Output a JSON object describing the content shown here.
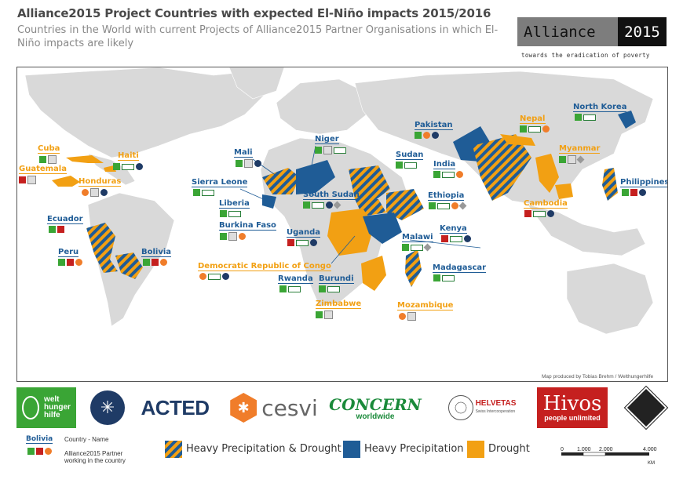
{
  "header": {
    "title": "Alliance2015 Project Countries with expected El-Niño impacts 2015/2016",
    "subtitle": "Countries in the World with current Projects of Alliance2015 Partner Organisations in which El-Niño impacts are likely"
  },
  "brand": {
    "logo_left": "Alliance",
    "logo_right": "2015",
    "tagline": "towards the eradication of poverty"
  },
  "map": {
    "credit": "Map produced by Tobias Brehm / Welthungerhilfe",
    "colors": {
      "heavy_precip": "#1f5c96",
      "drought": "#f2a013",
      "land": "#d9d9d9"
    },
    "countries": [
      {
        "name": "Cuba",
        "impact": "drought"
      },
      {
        "name": "Haiti",
        "impact": "drought"
      },
      {
        "name": "Guatemala",
        "impact": "drought"
      },
      {
        "name": "Honduras",
        "impact": "drought"
      },
      {
        "name": "Ecuador",
        "impact": "heavy-precipitation-and-drought"
      },
      {
        "name": "Peru",
        "impact": "heavy-precipitation-and-drought"
      },
      {
        "name": "Bolivia",
        "impact": "heavy-precipitation-and-drought"
      },
      {
        "name": "Mali",
        "impact": "heavy-precipitation-and-drought"
      },
      {
        "name": "Niger",
        "impact": "heavy-precipitation"
      },
      {
        "name": "Sierra Leone",
        "impact": "heavy-precipitation"
      },
      {
        "name": "Liberia",
        "impact": "heavy-precipitation"
      },
      {
        "name": "Burkina Faso",
        "impact": "heavy-precipitation"
      },
      {
        "name": "Sudan",
        "impact": "heavy-precipitation-and-drought"
      },
      {
        "name": "South Sudan",
        "impact": "heavy-precipitation-and-drought"
      },
      {
        "name": "Ethiopia",
        "impact": "heavy-precipitation-and-drought"
      },
      {
        "name": "Uganda",
        "impact": "heavy-precipitation"
      },
      {
        "name": "Kenya",
        "impact": "heavy-precipitation"
      },
      {
        "name": "Rwanda",
        "impact": "heavy-precipitation"
      },
      {
        "name": "Burundi",
        "impact": "heavy-precipitation"
      },
      {
        "name": "Democratic Republic of Congo",
        "impact": "drought"
      },
      {
        "name": "Malawi",
        "impact": "drought"
      },
      {
        "name": "Zimbabwe",
        "impact": "drought"
      },
      {
        "name": "Mozambique",
        "impact": "drought"
      },
      {
        "name": "Madagascar",
        "impact": "heavy-precipitation-and-drought"
      },
      {
        "name": "Pakistan",
        "impact": "heavy-precipitation"
      },
      {
        "name": "India",
        "impact": "heavy-precipitation-and-drought"
      },
      {
        "name": "Nepal",
        "impact": "drought"
      },
      {
        "name": "Myanmar",
        "impact": "drought"
      },
      {
        "name": "Cambodia",
        "impact": "drought"
      },
      {
        "name": "Philippines",
        "impact": "heavy-precipitation-and-drought"
      },
      {
        "name": "North Korea",
        "impact": "heavy-precipitation"
      }
    ]
  },
  "legend": {
    "sample_country": "Bolivia",
    "country_name": "Country - Name",
    "partner_line1": "Alliance2015 Partner",
    "partner_line2": "working in the country",
    "heavy_precip_drought": "Heavy Precipitation & Drought",
    "heavy_precip": "Heavy Precipitation",
    "drought": "Drought"
  },
  "scale": {
    "ticks": [
      "0",
      "1.000",
      "2.000",
      "4.000"
    ],
    "unit": "KM"
  },
  "partners": {
    "welt_line1": "welt",
    "welt_line2": "hunger",
    "welt_line3": "hilfe",
    "acted": "ACTED",
    "cesvi": "cesvi",
    "concern": "CONCERN",
    "concern_sub": "worldwide",
    "helvetas": "HELVETAS",
    "helvetas_sub": "Swiss Intercooperation",
    "hivos": "Hivos",
    "hivos_sub": "people unlimited"
  }
}
